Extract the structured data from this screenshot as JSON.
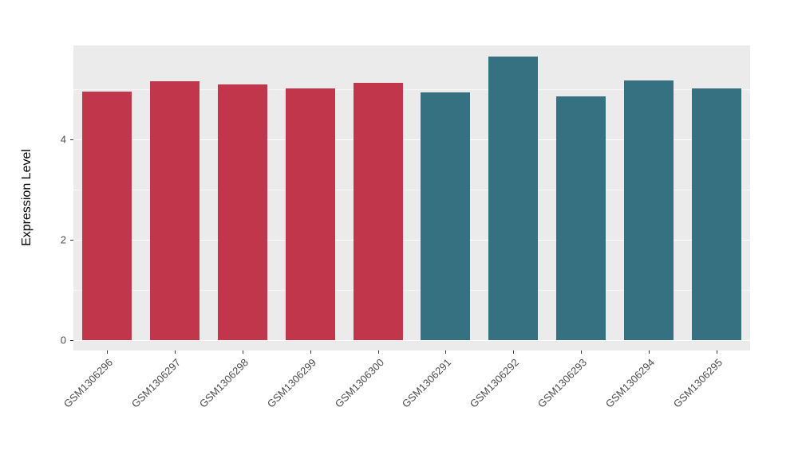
{
  "chart_data": {
    "type": "bar",
    "title": "",
    "xlabel": "",
    "ylabel": "Expression Level",
    "categories": [
      "GSM1306296",
      "GSM1306297",
      "GSM1306298",
      "GSM1306299",
      "GSM1306300",
      "GSM1306291",
      "GSM1306292",
      "GSM1306293",
      "GSM1306294",
      "GSM1306295"
    ],
    "values": [
      4.95,
      5.15,
      5.1,
      5.01,
      5.12,
      4.94,
      5.65,
      4.85,
      5.17,
      5.01
    ],
    "colors": [
      "#C2364C",
      "#C2364C",
      "#C2364C",
      "#C2364C",
      "#C2364C",
      "#367182",
      "#367182",
      "#367182",
      "#367182",
      "#367182"
    ],
    "group_colors": {
      "group_1": "#C2364C",
      "group_2": "#367182"
    },
    "yticks": [
      0,
      2,
      4
    ],
    "minor_yticks": [
      1,
      3,
      5
    ],
    "ylim": [
      -0.2,
      5.87
    ],
    "grid": true,
    "legend": "none",
    "panel_background": "#EBEBEB",
    "gridline_color": "#FFFFFF",
    "bar_width_fraction": 0.73
  }
}
